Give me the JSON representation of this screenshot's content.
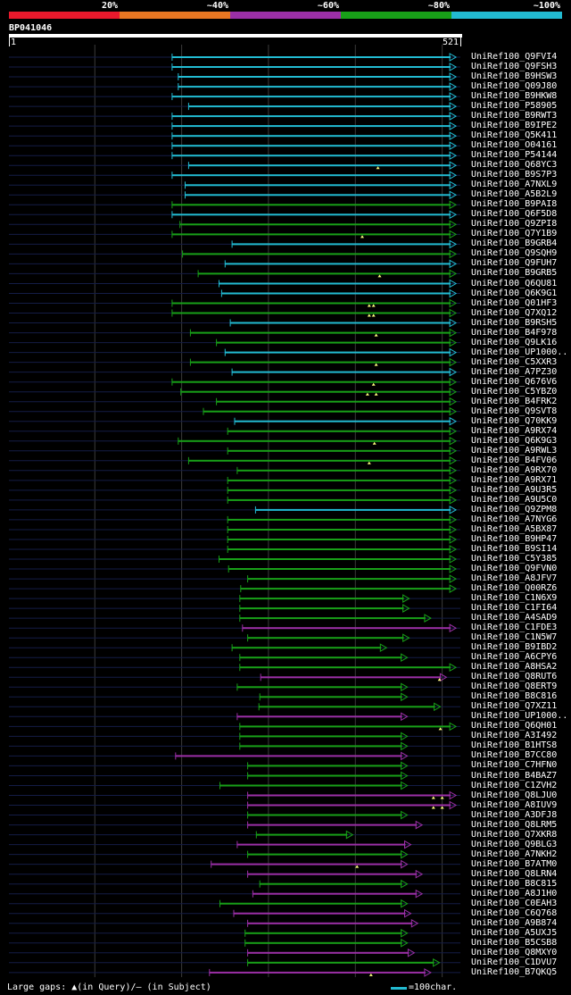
{
  "legend": {
    "labels": [
      "20%",
      "~40%",
      "~60%",
      "~80%",
      "~100%"
    ],
    "colors": [
      "#e8192c",
      "#e87722",
      "#9b2fa6",
      "#18a018",
      "#22bbd2"
    ]
  },
  "query": {
    "name": "BP041046",
    "start": "1",
    "end": "521",
    "length": 521
  },
  "footer": {
    "gaps": "Large gaps: ▲(in Query)/– (in Subject)",
    "scale": "=100char."
  },
  "chart_data": {
    "type": "alignment-overview",
    "title": "BP041046",
    "query_length": 521,
    "color_key": {
      "c": "#22bbd2",
      "g": "#18a018",
      "m": "#9b2fa6"
    },
    "hits": [
      {
        "name": "UniRef100_Q9FVI4",
        "s": 189,
        "e": 516,
        "c": "c",
        "m": []
      },
      {
        "name": "UniRef100_Q9FSH3",
        "s": 189,
        "e": 516,
        "c": "c",
        "m": []
      },
      {
        "name": "UniRef100_B9HSW3",
        "s": 196,
        "e": 516,
        "c": "c",
        "m": []
      },
      {
        "name": "UniRef100_Q09J80",
        "s": 196,
        "e": 516,
        "c": "c",
        "m": []
      },
      {
        "name": "UniRef100_B9HKW8",
        "s": 189,
        "e": 516,
        "c": "c",
        "m": []
      },
      {
        "name": "UniRef100_P58905",
        "s": 208,
        "e": 516,
        "c": "c",
        "m": []
      },
      {
        "name": "UniRef100_B9RWT3",
        "s": 189,
        "e": 516,
        "c": "c",
        "m": []
      },
      {
        "name": "UniRef100_B9IPE2",
        "s": 189,
        "e": 516,
        "c": "c",
        "m": []
      },
      {
        "name": "UniRef100_Q5K411",
        "s": 189,
        "e": 516,
        "c": "c",
        "m": []
      },
      {
        "name": "UniRef100_O04161",
        "s": 189,
        "e": 516,
        "c": "c",
        "m": []
      },
      {
        "name": "UniRef100_P54144",
        "s": 189,
        "e": 516,
        "c": "c",
        "m": []
      },
      {
        "name": "UniRef100_Q68YC3",
        "s": 208,
        "e": 516,
        "c": "c",
        "m": [
          426
        ]
      },
      {
        "name": "UniRef100_B9S7P3",
        "s": 189,
        "e": 516,
        "c": "c",
        "m": []
      },
      {
        "name": "UniRef100_A7NXL9",
        "s": 204,
        "e": 516,
        "c": "c",
        "m": []
      },
      {
        "name": "UniRef100_A5B2L9",
        "s": 204,
        "e": 516,
        "c": "c",
        "m": []
      },
      {
        "name": "UniRef100_B9PAI8",
        "s": 189,
        "e": 516,
        "c": "g",
        "m": []
      },
      {
        "name": "UniRef100_Q6F5D8",
        "s": 189,
        "e": 516,
        "c": "c",
        "m": []
      },
      {
        "name": "UniRef100_Q9ZPI8",
        "s": 198,
        "e": 516,
        "c": "g",
        "m": []
      },
      {
        "name": "UniRef100_Q7Y1B9",
        "s": 189,
        "e": 516,
        "c": "g",
        "m": [
          408
        ]
      },
      {
        "name": "UniRef100_B9GRB4",
        "s": 258,
        "e": 516,
        "c": "c",
        "m": []
      },
      {
        "name": "UniRef100_Q9SQH9",
        "s": 201,
        "e": 516,
        "c": "g",
        "m": []
      },
      {
        "name": "UniRef100_Q9FUH7",
        "s": 250,
        "e": 516,
        "c": "c",
        "m": []
      },
      {
        "name": "UniRef100_B9GRB5",
        "s": 219,
        "e": 516,
        "c": "g",
        "m": [
          428
        ]
      },
      {
        "name": "UniRef100_Q6QU81",
        "s": 243,
        "e": 516,
        "c": "c",
        "m": []
      },
      {
        "name": "UniRef100_Q6K9G1",
        "s": 246,
        "e": 516,
        "c": "c",
        "m": []
      },
      {
        "name": "UniRef100_Q01HF3",
        "s": 189,
        "e": 516,
        "c": "g",
        "m": [
          416,
          421
        ]
      },
      {
        "name": "UniRef100_Q7XQ12",
        "s": 189,
        "e": 516,
        "c": "g",
        "m": [
          416,
          421
        ]
      },
      {
        "name": "UniRef100_B9RSH5",
        "s": 256,
        "e": 516,
        "c": "c",
        "m": []
      },
      {
        "name": "UniRef100_B4F978",
        "s": 210,
        "e": 516,
        "c": "g",
        "m": [
          424
        ]
      },
      {
        "name": "UniRef100_Q9LK16",
        "s": 240,
        "e": 516,
        "c": "g",
        "m": []
      },
      {
        "name": "UniRef100_UP1000..",
        "s": 250,
        "e": 516,
        "c": "c",
        "m": []
      },
      {
        "name": "UniRef100_C5XXR3",
        "s": 210,
        "e": 516,
        "c": "g",
        "m": [
          424
        ]
      },
      {
        "name": "UniRef100_A7PZ30",
        "s": 258,
        "e": 516,
        "c": "c",
        "m": []
      },
      {
        "name": "UniRef100_Q676V6",
        "s": 189,
        "e": 516,
        "c": "g",
        "m": [
          421
        ]
      },
      {
        "name": "UniRef100_C5YBZ0",
        "s": 199,
        "e": 516,
        "c": "g",
        "m": [
          414,
          424
        ]
      },
      {
        "name": "UniRef100_B4FRK2",
        "s": 240,
        "e": 516,
        "c": "g",
        "m": []
      },
      {
        "name": "UniRef100_Q9SVT8",
        "s": 225,
        "e": 516,
        "c": "g",
        "m": []
      },
      {
        "name": "UniRef100_Q70KK9",
        "s": 261,
        "e": 516,
        "c": "c",
        "m": []
      },
      {
        "name": "UniRef100_A9RX74",
        "s": 253,
        "e": 516,
        "c": "g",
        "m": []
      },
      {
        "name": "UniRef100_Q6K9G3",
        "s": 196,
        "e": 516,
        "c": "g",
        "m": [
          422
        ]
      },
      {
        "name": "UniRef100_A9RWL3",
        "s": 253,
        "e": 516,
        "c": "g",
        "m": []
      },
      {
        "name": "UniRef100_B4FV06",
        "s": 208,
        "e": 516,
        "c": "g",
        "m": [
          416
        ]
      },
      {
        "name": "UniRef100_A9RX70",
        "s": 264,
        "e": 516,
        "c": "g",
        "m": []
      },
      {
        "name": "UniRef100_A9RX71",
        "s": 253,
        "e": 516,
        "c": "g",
        "m": []
      },
      {
        "name": "UniRef100_A9U3R5",
        "s": 253,
        "e": 516,
        "c": "g",
        "m": []
      },
      {
        "name": "UniRef100_A9U5C0",
        "s": 253,
        "e": 516,
        "c": "g",
        "m": []
      },
      {
        "name": "UniRef100_Q9ZPM8",
        "s": 285,
        "e": 516,
        "c": "c",
        "m": []
      },
      {
        "name": "UniRef100_A7NYG6",
        "s": 253,
        "e": 516,
        "c": "g",
        "m": []
      },
      {
        "name": "UniRef100_A5BX87",
        "s": 253,
        "e": 516,
        "c": "g",
        "m": []
      },
      {
        "name": "UniRef100_B9HP47",
        "s": 253,
        "e": 516,
        "c": "g",
        "m": []
      },
      {
        "name": "UniRef100_B9SI14",
        "s": 253,
        "e": 516,
        "c": "g",
        "m": []
      },
      {
        "name": "UniRef100_C5Y385",
        "s": 243,
        "e": 516,
        "c": "g",
        "m": []
      },
      {
        "name": "UniRef100_Q9FVN0",
        "s": 254,
        "e": 516,
        "c": "g",
        "m": []
      },
      {
        "name": "UniRef100_A8JFV7",
        "s": 276,
        "e": 516,
        "c": "g",
        "m": []
      },
      {
        "name": "UniRef100_Q00RZ6",
        "s": 268,
        "e": 516,
        "c": "g",
        "m": []
      },
      {
        "name": "UniRef100_C1N6X9",
        "s": 267,
        "e": 462,
        "c": "g",
        "m": []
      },
      {
        "name": "UniRef100_C1FI64",
        "s": 267,
        "e": 462,
        "c": "g",
        "m": []
      },
      {
        "name": "UniRef100_A4SAD9",
        "s": 267,
        "e": 487,
        "c": "g",
        "m": []
      },
      {
        "name": "UniRef100_C1FDE3",
        "s": 270,
        "e": 516,
        "c": "m",
        "m": []
      },
      {
        "name": "UniRef100_C1N5W7",
        "s": 276,
        "e": 462,
        "c": "g",
        "m": []
      },
      {
        "name": "UniRef100_B9IBD2",
        "s": 258,
        "e": 436,
        "c": "g",
        "m": []
      },
      {
        "name": "UniRef100_A6CPY6",
        "s": 267,
        "e": 460,
        "c": "g",
        "m": []
      },
      {
        "name": "UniRef100_A8HSA2",
        "s": 267,
        "e": 516,
        "c": "g",
        "m": []
      },
      {
        "name": "UniRef100_Q8RUT6",
        "s": 291,
        "e": 505,
        "c": "m",
        "m": [
          497
        ]
      },
      {
        "name": "UniRef100_Q8ERT9",
        "s": 264,
        "e": 460,
        "c": "g",
        "m": []
      },
      {
        "name": "UniRef100_B8C816",
        "s": 290,
        "e": 460,
        "c": "g",
        "m": []
      },
      {
        "name": "UniRef100_Q7XZ11",
        "s": 289,
        "e": 498,
        "c": "g",
        "m": []
      },
      {
        "name": "UniRef100_UP1000..",
        "s": 264,
        "e": 460,
        "c": "m",
        "m": []
      },
      {
        "name": "UniRef100_Q6QH01",
        "s": 267,
        "e": 516,
        "c": "g",
        "m": [
          498
        ]
      },
      {
        "name": "UniRef100_A3I492",
        "s": 267,
        "e": 460,
        "c": "g",
        "m": []
      },
      {
        "name": "UniRef100_B1HTS8",
        "s": 267,
        "e": 460,
        "c": "g",
        "m": []
      },
      {
        "name": "UniRef100_B7CC80",
        "s": 193,
        "e": 460,
        "c": "m",
        "m": []
      },
      {
        "name": "UniRef100_C7HFN0",
        "s": 276,
        "e": 460,
        "c": "g",
        "m": []
      },
      {
        "name": "UniRef100_B4BAZ7",
        "s": 276,
        "e": 460,
        "c": "g",
        "m": []
      },
      {
        "name": "UniRef100_C1ZVH2",
        "s": 244,
        "e": 460,
        "c": "g",
        "m": []
      },
      {
        "name": "UniRef100_Q8LJU0",
        "s": 276,
        "e": 516,
        "c": "m",
        "m": [
          490,
          500
        ]
      },
      {
        "name": "UniRef100_A8IUV9",
        "s": 276,
        "e": 516,
        "c": "m",
        "m": [
          490,
          500
        ]
      },
      {
        "name": "UniRef100_A3DFJ8",
        "s": 276,
        "e": 460,
        "c": "g",
        "m": []
      },
      {
        "name": "UniRef100_Q8LRM5",
        "s": 276,
        "e": 477,
        "c": "m",
        "m": []
      },
      {
        "name": "UniRef100_Q7XKR8",
        "s": 286,
        "e": 397,
        "c": "g",
        "m": []
      },
      {
        "name": "UniRef100_Q9BLG3",
        "s": 264,
        "e": 464,
        "c": "m",
        "m": []
      },
      {
        "name": "UniRef100_A7NKH2",
        "s": 276,
        "e": 460,
        "c": "g",
        "m": []
      },
      {
        "name": "UniRef100_B7ATM0",
        "s": 234,
        "e": 460,
        "c": "m",
        "m": [
          402
        ]
      },
      {
        "name": "UniRef100_Q8LRN4",
        "s": 276,
        "e": 477,
        "c": "m",
        "m": []
      },
      {
        "name": "UniRef100_B8C815",
        "s": 290,
        "e": 460,
        "c": "g",
        "m": []
      },
      {
        "name": "UniRef100_A8J1H0",
        "s": 282,
        "e": 477,
        "c": "m",
        "m": []
      },
      {
        "name": "UniRef100_C0EAH3",
        "s": 244,
        "e": 460,
        "c": "g",
        "m": []
      },
      {
        "name": "UniRef100_C6Q768",
        "s": 260,
        "e": 464,
        "c": "m",
        "m": []
      },
      {
        "name": "UniRef100_A9B874",
        "s": 276,
        "e": 472,
        "c": "m",
        "m": []
      },
      {
        "name": "UniRef100_A5UXJ5",
        "s": 273,
        "e": 460,
        "c": "g",
        "m": []
      },
      {
        "name": "UniRef100_B5CSB8",
        "s": 273,
        "e": 460,
        "c": "g",
        "m": []
      },
      {
        "name": "UniRef100_Q8MXY0",
        "s": 276,
        "e": 468,
        "c": "m",
        "m": []
      },
      {
        "name": "UniRef100_C1DVU7",
        "s": 276,
        "e": 497,
        "c": "g",
        "m": []
      },
      {
        "name": "UniRef100_B7QKQ5",
        "s": 232,
        "e": 487,
        "c": "m",
        "m": [
          418
        ]
      }
    ]
  }
}
